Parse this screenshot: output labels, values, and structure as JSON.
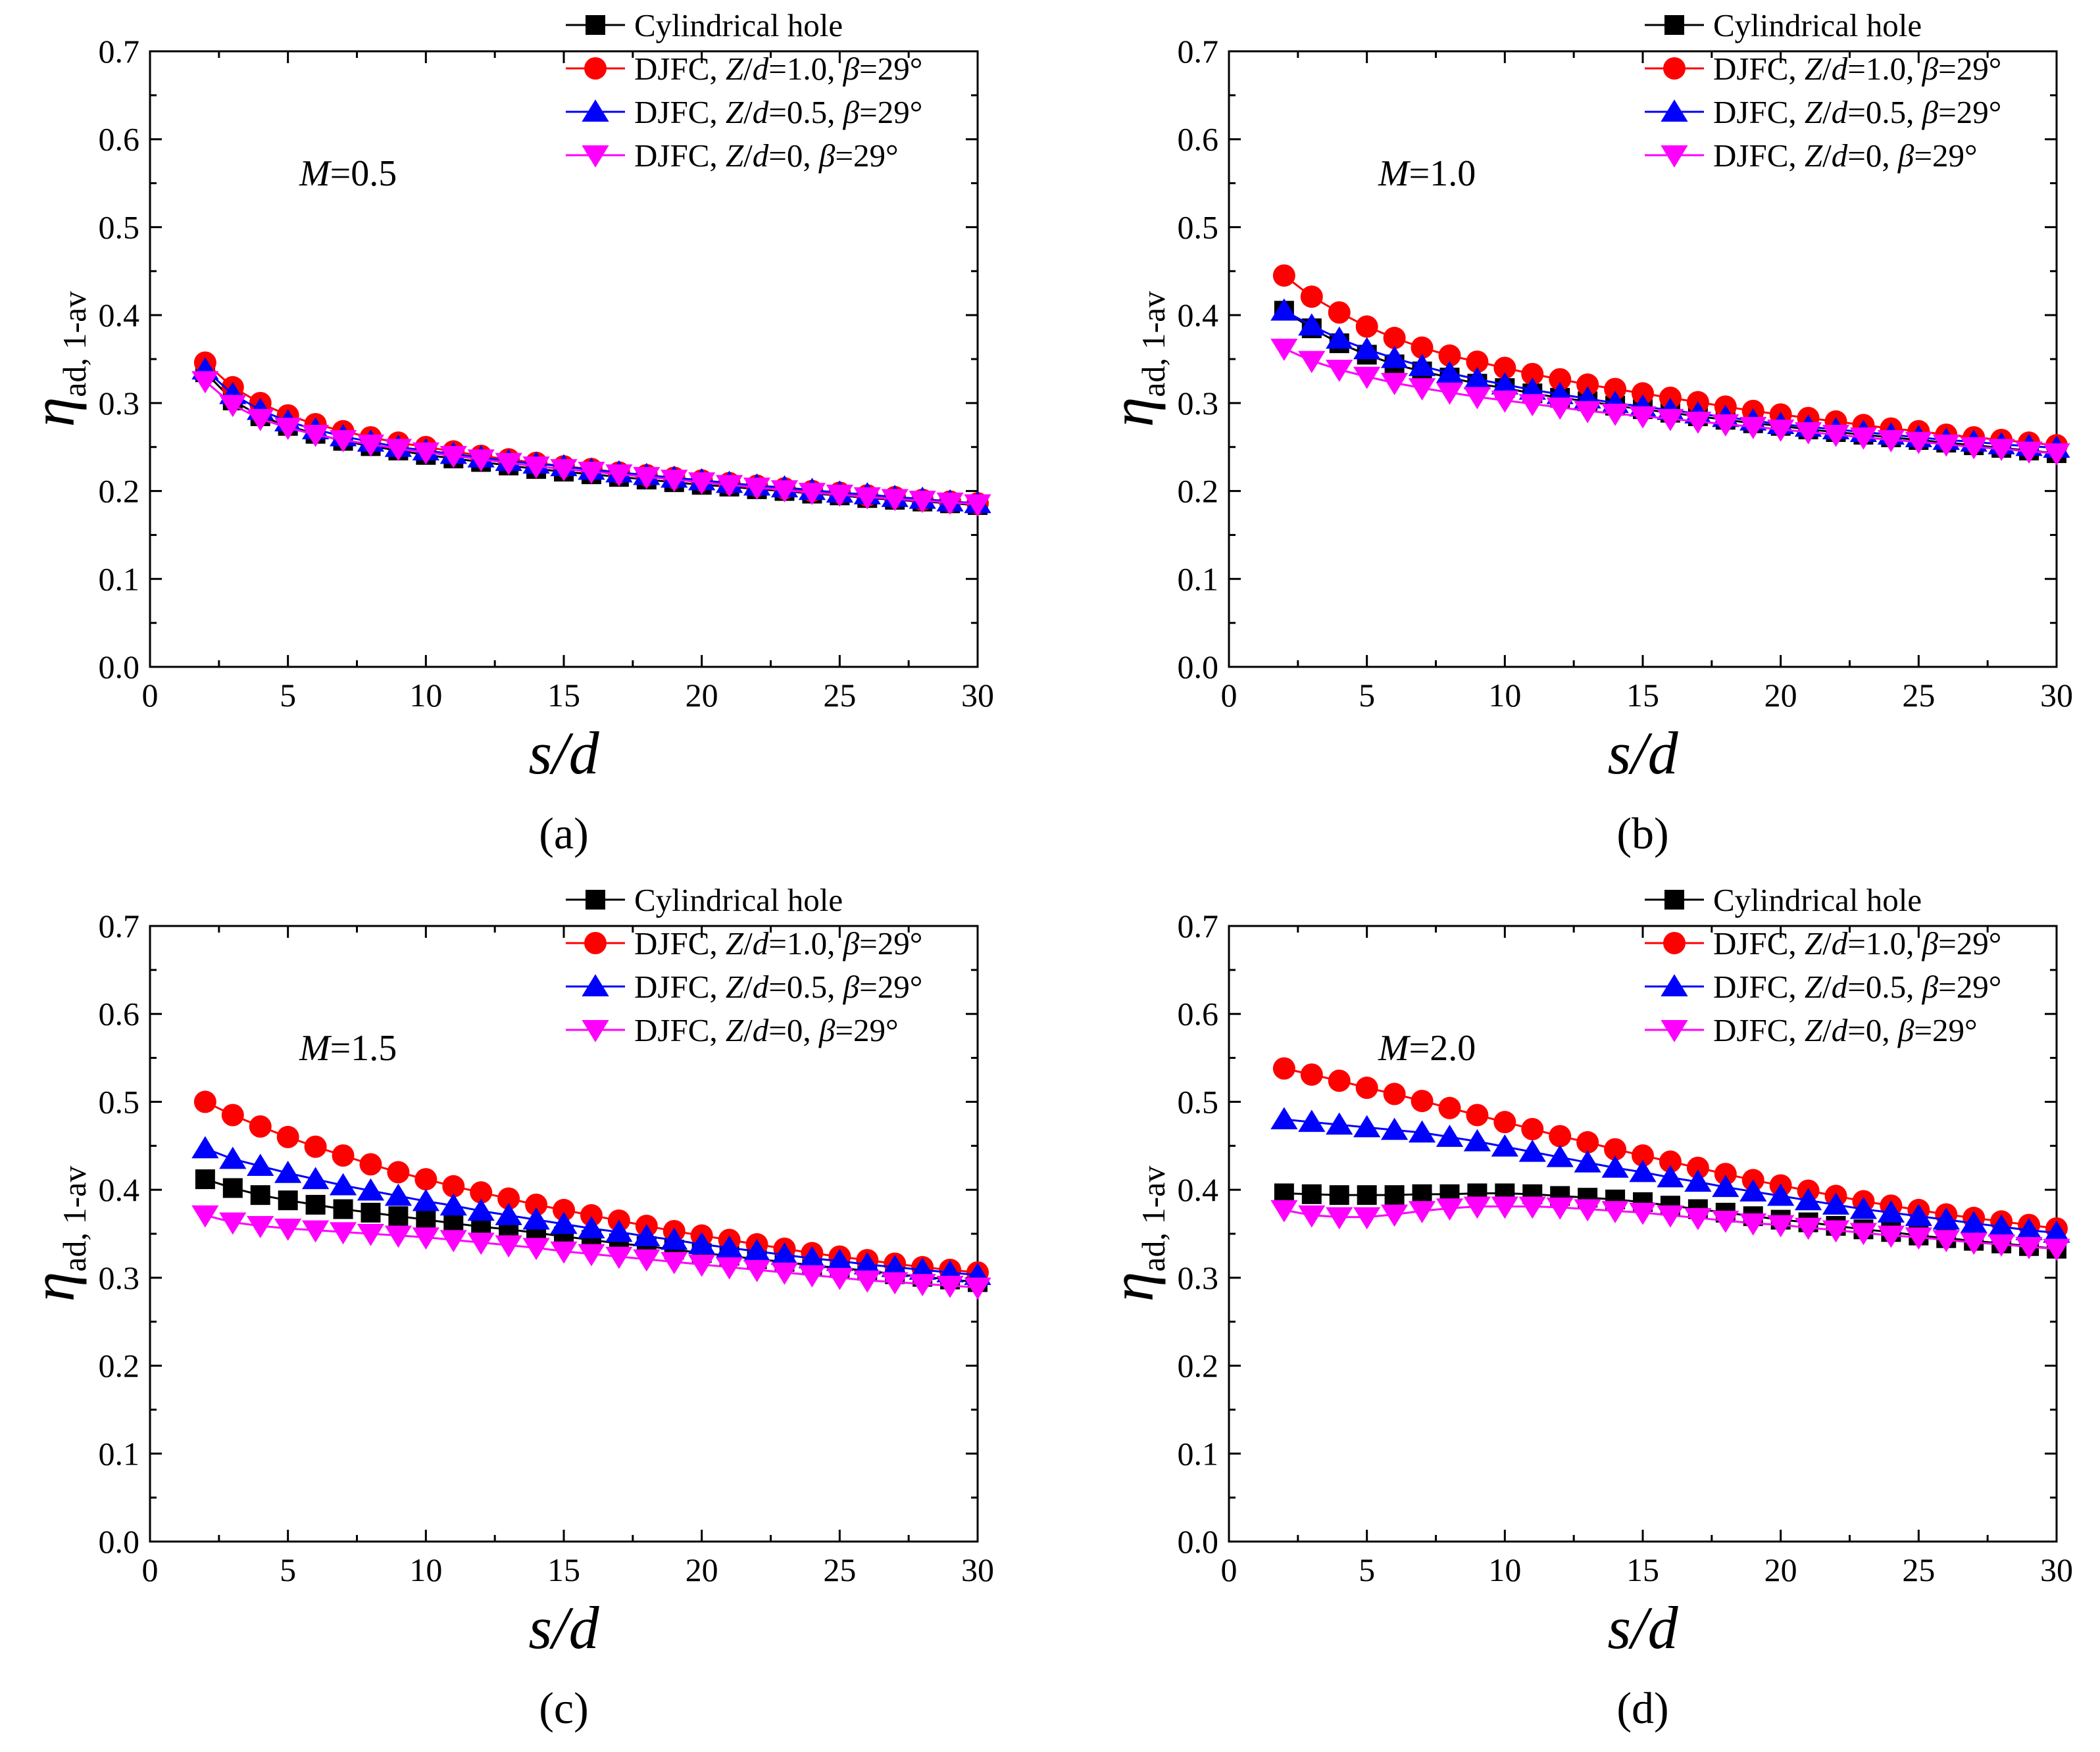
{
  "figure": {
    "panels": [
      {
        "id": "a",
        "label": "(a)",
        "annotation": {
          "var": "M",
          "value": "=0.5"
        }
      },
      {
        "id": "b",
        "label": "(b)",
        "annotation": {
          "var": "M",
          "value": "=1.0"
        }
      },
      {
        "id": "c",
        "label": "(c)",
        "annotation": {
          "var": "M",
          "value": "=1.5"
        }
      },
      {
        "id": "d",
        "label": "(d)",
        "annotation": {
          "var": "M",
          "value": "=2.0"
        }
      }
    ]
  },
  "axes_text": {
    "xlabel": "s/d",
    "ylabel_symbol": "η",
    "ylabel_subscript": "ad, 1-av",
    "xticks": [
      "0",
      "5",
      "10",
      "15",
      "20",
      "25",
      "30"
    ],
    "yticks": [
      "0.0",
      "0.1",
      "0.2",
      "0.3",
      "0.4",
      "0.5",
      "0.6",
      "0.7"
    ]
  },
  "legend": [
    {
      "parts": [
        {
          "t": "Cylindrical hole",
          "i": false
        }
      ]
    },
    {
      "parts": [
        {
          "t": "DJFC, ",
          "i": false
        },
        {
          "t": "Z",
          "i": true
        },
        {
          "t": "/",
          "i": false
        },
        {
          "t": "d",
          "i": true
        },
        {
          "t": "=1.0, ",
          "i": false
        },
        {
          "t": "β",
          "i": true
        },
        {
          "t": "=29°",
          "i": false
        }
      ]
    },
    {
      "parts": [
        {
          "t": "DJFC, ",
          "i": false
        },
        {
          "t": "Z",
          "i": true
        },
        {
          "t": "/",
          "i": false
        },
        {
          "t": "d",
          "i": true
        },
        {
          "t": "=0.5, ",
          "i": false
        },
        {
          "t": "β",
          "i": true
        },
        {
          "t": "=29°",
          "i": false
        }
      ]
    },
    {
      "parts": [
        {
          "t": "DJFC, ",
          "i": false
        },
        {
          "t": "Z",
          "i": true
        },
        {
          "t": "/",
          "i": false
        },
        {
          "t": "d",
          "i": true
        },
        {
          "t": "=0, ",
          "i": false
        },
        {
          "t": "β",
          "i": true
        },
        {
          "t": "=29°",
          "i": false
        }
      ]
    }
  ],
  "chart_data": [
    {
      "panel": "a",
      "type": "line",
      "xlim": [
        0,
        30
      ],
      "ylim": [
        0.0,
        0.7
      ],
      "legend_position": "top-right",
      "x": [
        2,
        3,
        4,
        5,
        6,
        7,
        8,
        9,
        10,
        11,
        12,
        13,
        14,
        15,
        16,
        17,
        18,
        19,
        20,
        21,
        22,
        23,
        24,
        25,
        26,
        27,
        28,
        29,
        30
      ],
      "series": [
        {
          "name": "Cylindrical hole",
          "color": "#000000",
          "marker": "square",
          "values": [
            0.335,
            0.303,
            0.285,
            0.274,
            0.265,
            0.257,
            0.251,
            0.246,
            0.241,
            0.237,
            0.233,
            0.229,
            0.225,
            0.222,
            0.219,
            0.216,
            0.213,
            0.21,
            0.207,
            0.205,
            0.202,
            0.2,
            0.197,
            0.195,
            0.192,
            0.19,
            0.188,
            0.186,
            0.184
          ]
        },
        {
          "name": "DJFC, Z/d=1.0, β=29°",
          "color": "#ff0000",
          "marker": "circle",
          "values": [
            0.346,
            0.318,
            0.3,
            0.286,
            0.276,
            0.268,
            0.261,
            0.255,
            0.25,
            0.245,
            0.24,
            0.236,
            0.232,
            0.228,
            0.225,
            0.221,
            0.218,
            0.215,
            0.212,
            0.209,
            0.206,
            0.203,
            0.2,
            0.198,
            0.195,
            0.193,
            0.19,
            0.188,
            0.186
          ]
        },
        {
          "name": "DJFC, Z/d=0.5, β=29°",
          "color": "#0000ff",
          "marker": "triangle-up",
          "values": [
            0.338,
            0.31,
            0.292,
            0.279,
            0.27,
            0.262,
            0.256,
            0.25,
            0.246,
            0.242,
            0.238,
            0.234,
            0.231,
            0.228,
            0.224,
            0.221,
            0.218,
            0.215,
            0.212,
            0.209,
            0.206,
            0.204,
            0.201,
            0.198,
            0.196,
            0.193,
            0.191,
            0.188,
            0.186
          ]
        },
        {
          "name": "DJFC, Z/d=0, β=29°",
          "color": "#ff00ff",
          "marker": "triangle-down",
          "values": [
            0.325,
            0.298,
            0.282,
            0.272,
            0.264,
            0.258,
            0.253,
            0.248,
            0.244,
            0.24,
            0.236,
            0.232,
            0.228,
            0.225,
            0.222,
            0.219,
            0.216,
            0.213,
            0.21,
            0.207,
            0.204,
            0.201,
            0.198,
            0.196,
            0.193,
            0.191,
            0.189,
            0.187,
            0.185
          ]
        }
      ]
    },
    {
      "panel": "b",
      "type": "line",
      "xlim": [
        0,
        30
      ],
      "ylim": [
        0.0,
        0.7
      ],
      "legend_position": "top-right",
      "x": [
        2,
        3,
        4,
        5,
        6,
        7,
        8,
        9,
        10,
        11,
        12,
        13,
        14,
        15,
        16,
        17,
        18,
        19,
        20,
        21,
        22,
        23,
        24,
        25,
        26,
        27,
        28,
        29,
        30
      ],
      "series": [
        {
          "name": "Cylindrical hole",
          "color": "#000000",
          "marker": "square",
          "values": [
            0.405,
            0.385,
            0.368,
            0.355,
            0.344,
            0.336,
            0.329,
            0.322,
            0.317,
            0.311,
            0.306,
            0.302,
            0.297,
            0.293,
            0.289,
            0.285,
            0.281,
            0.277,
            0.274,
            0.27,
            0.267,
            0.264,
            0.261,
            0.258,
            0.255,
            0.252,
            0.249,
            0.246,
            0.243
          ]
        },
        {
          "name": "DJFC, Z/d=1.0, β=29°",
          "color": "#ff0000",
          "marker": "circle",
          "values": [
            0.445,
            0.421,
            0.403,
            0.387,
            0.374,
            0.363,
            0.354,
            0.347,
            0.34,
            0.333,
            0.327,
            0.321,
            0.316,
            0.311,
            0.306,
            0.301,
            0.296,
            0.291,
            0.287,
            0.283,
            0.279,
            0.275,
            0.271,
            0.268,
            0.264,
            0.261,
            0.258,
            0.255,
            0.252
          ]
        },
        {
          "name": "DJFC, Z/d=0.5, β=29°",
          "color": "#0000ff",
          "marker": "triangle-up",
          "values": [
            0.405,
            0.388,
            0.373,
            0.361,
            0.351,
            0.342,
            0.334,
            0.327,
            0.321,
            0.315,
            0.31,
            0.305,
            0.3,
            0.296,
            0.292,
            0.288,
            0.284,
            0.28,
            0.276,
            0.273,
            0.27,
            0.267,
            0.264,
            0.261,
            0.258,
            0.256,
            0.253,
            0.251,
            0.249
          ]
        },
        {
          "name": "DJFC, Z/d=0, β=29°",
          "color": "#ff00ff",
          "marker": "triangle-down",
          "values": [
            0.362,
            0.348,
            0.338,
            0.33,
            0.323,
            0.317,
            0.312,
            0.307,
            0.303,
            0.299,
            0.295,
            0.291,
            0.288,
            0.285,
            0.282,
            0.279,
            0.276,
            0.273,
            0.27,
            0.267,
            0.264,
            0.261,
            0.258,
            0.256,
            0.253,
            0.25,
            0.248,
            0.245,
            0.243
          ]
        }
      ]
    },
    {
      "panel": "c",
      "type": "line",
      "xlim": [
        0,
        30
      ],
      "ylim": [
        0.0,
        0.7
      ],
      "legend_position": "top-right",
      "x": [
        2,
        3,
        4,
        5,
        6,
        7,
        8,
        9,
        10,
        11,
        12,
        13,
        14,
        15,
        16,
        17,
        18,
        19,
        20,
        21,
        22,
        23,
        24,
        25,
        26,
        27,
        28,
        29,
        30
      ],
      "series": [
        {
          "name": "Cylindrical hole",
          "color": "#000000",
          "marker": "square",
          "values": [
            0.412,
            0.402,
            0.394,
            0.388,
            0.383,
            0.378,
            0.374,
            0.37,
            0.366,
            0.362,
            0.358,
            0.355,
            0.351,
            0.347,
            0.343,
            0.339,
            0.336,
            0.332,
            0.328,
            0.325,
            0.321,
            0.318,
            0.314,
            0.311,
            0.308,
            0.304,
            0.301,
            0.298,
            0.295
          ]
        },
        {
          "name": "DJFC, Z/d=1.0, β=29°",
          "color": "#ff0000",
          "marker": "circle",
          "values": [
            0.5,
            0.485,
            0.472,
            0.46,
            0.449,
            0.439,
            0.429,
            0.42,
            0.412,
            0.404,
            0.397,
            0.39,
            0.383,
            0.377,
            0.371,
            0.365,
            0.359,
            0.353,
            0.348,
            0.343,
            0.338,
            0.333,
            0.328,
            0.324,
            0.32,
            0.316,
            0.312,
            0.309,
            0.306
          ]
        },
        {
          "name": "DJFC, Z/d=0.5, β=29°",
          "color": "#0000ff",
          "marker": "triangle-up",
          "values": [
            0.447,
            0.435,
            0.427,
            0.419,
            0.412,
            0.405,
            0.399,
            0.393,
            0.387,
            0.382,
            0.376,
            0.371,
            0.366,
            0.361,
            0.356,
            0.352,
            0.347,
            0.343,
            0.338,
            0.334,
            0.33,
            0.326,
            0.322,
            0.319,
            0.315,
            0.312,
            0.309,
            0.306,
            0.303
          ]
        },
        {
          "name": "DJFC, Z/d=0, β=29°",
          "color": "#ff00ff",
          "marker": "triangle-down",
          "values": [
            0.371,
            0.363,
            0.359,
            0.356,
            0.354,
            0.352,
            0.35,
            0.348,
            0.346,
            0.343,
            0.34,
            0.337,
            0.334,
            0.33,
            0.327,
            0.324,
            0.321,
            0.318,
            0.315,
            0.312,
            0.309,
            0.306,
            0.303,
            0.3,
            0.297,
            0.295,
            0.293,
            0.291,
            0.289
          ]
        }
      ]
    },
    {
      "panel": "d",
      "type": "line",
      "xlim": [
        0,
        30
      ],
      "ylim": [
        0.0,
        0.7
      ],
      "legend_position": "top-right",
      "x": [
        2,
        3,
        4,
        5,
        6,
        7,
        8,
        9,
        10,
        11,
        12,
        13,
        14,
        15,
        16,
        17,
        18,
        19,
        20,
        21,
        22,
        23,
        24,
        25,
        26,
        27,
        28,
        29,
        30
      ],
      "series": [
        {
          "name": "Cylindrical hole",
          "color": "#000000",
          "marker": "square",
          "values": [
            0.396,
            0.395,
            0.394,
            0.394,
            0.394,
            0.395,
            0.395,
            0.396,
            0.396,
            0.395,
            0.393,
            0.391,
            0.389,
            0.386,
            0.382,
            0.378,
            0.374,
            0.37,
            0.366,
            0.363,
            0.359,
            0.355,
            0.352,
            0.348,
            0.345,
            0.342,
            0.339,
            0.336,
            0.333
          ]
        },
        {
          "name": "DJFC, Z/d=1.0, β=29°",
          "color": "#ff0000",
          "marker": "circle",
          "values": [
            0.538,
            0.531,
            0.524,
            0.516,
            0.509,
            0.501,
            0.493,
            0.485,
            0.477,
            0.469,
            0.461,
            0.454,
            0.446,
            0.439,
            0.432,
            0.425,
            0.418,
            0.411,
            0.405,
            0.399,
            0.393,
            0.387,
            0.382,
            0.377,
            0.372,
            0.368,
            0.364,
            0.36,
            0.356
          ]
        },
        {
          "name": "DJFC, Z/d=0.5, β=29°",
          "color": "#0000ff",
          "marker": "triangle-up",
          "values": [
            0.48,
            0.477,
            0.474,
            0.471,
            0.468,
            0.465,
            0.46,
            0.455,
            0.449,
            0.443,
            0.437,
            0.431,
            0.425,
            0.42,
            0.414,
            0.409,
            0.403,
            0.398,
            0.393,
            0.388,
            0.383,
            0.378,
            0.374,
            0.37,
            0.366,
            0.362,
            0.358,
            0.354,
            0.351
          ]
        },
        {
          "name": "DJFC, Z/d=0, β=29°",
          "color": "#ff00ff",
          "marker": "triangle-down",
          "values": [
            0.377,
            0.371,
            0.369,
            0.369,
            0.372,
            0.376,
            0.379,
            0.381,
            0.381,
            0.381,
            0.38,
            0.378,
            0.376,
            0.374,
            0.371,
            0.368,
            0.365,
            0.362,
            0.36,
            0.357,
            0.354,
            0.351,
            0.348,
            0.346,
            0.343,
            0.34,
            0.338,
            0.335,
            0.333
          ]
        }
      ]
    }
  ]
}
